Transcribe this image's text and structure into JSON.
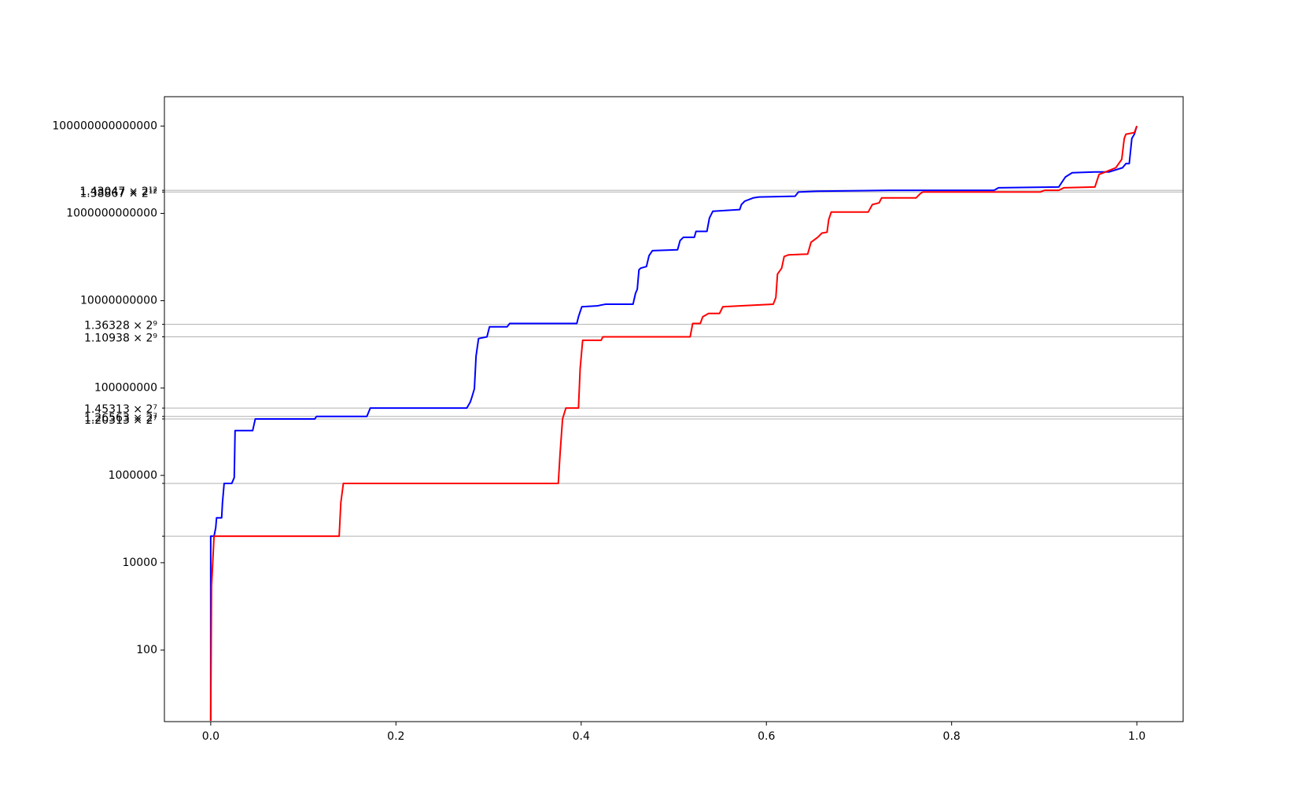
{
  "chart_data": {
    "type": "line",
    "yscale": "log",
    "xlim": [
      -0.05,
      1.05
    ],
    "ylim": [
      2.3,
      470000000000000
    ],
    "xticks": [
      {
        "value": 0,
        "label": "0.0"
      },
      0.2,
      0.4,
      0.6,
      0.8,
      {
        "value": 1,
        "label": "1.0"
      }
    ],
    "yticks": [
      100,
      10000,
      1000000,
      100000000,
      10000000000,
      1000000000000,
      100000000000000
    ],
    "yminorticks": [
      {
        "value": 3370000000000,
        "label": "1.43047 × 2¹²"
      },
      {
        "value": 3080000000000,
        "label": "1.38867 × 2¹²"
      },
      {
        "value": 2880000000,
        "label": "1.36328 × 2⁹"
      },
      {
        "value": 1490000000,
        "label": "1.10938 × 2⁹"
      },
      {
        "value": 34800000,
        "label": "1.45313 × 2⁷"
      },
      {
        "value": 22400000,
        "label": "1.26563 × 2⁷"
      },
      {
        "value": 19600000,
        "label": "1.20313 × 2⁷"
      },
      {
        "value": 655000,
        "label": null
      },
      {
        "value": 40500,
        "label": null
      }
    ],
    "grid": true,
    "series": [
      {
        "color": "#0000ff",
        "x": [
          0,
          0,
          0.0036,
          0.0054,
          0.0063,
          0.0118,
          0.0127,
          0.0145,
          0.0227,
          0.0254,
          0.0263,
          0.0453,
          0.0481,
          0.1124,
          0.1142,
          0.1686,
          0.1723,
          0.2765,
          0.2802,
          0.282,
          0.2847,
          0.2865,
          0.2892,
          0.2983,
          0.301,
          0.32,
          0.3228,
          0.3953,
          0.3971,
          0.4007,
          0.417,
          0.4261,
          0.456,
          0.4587,
          0.4606,
          0.4624,
          0.4642,
          0.4705,
          0.4733,
          0.4769,
          0.5041,
          0.5068,
          0.5104,
          0.5222,
          0.524,
          0.5358,
          0.5385,
          0.5422,
          0.5712,
          0.573,
          0.5766,
          0.5857,
          0.592,
          0.631,
          0.6346,
          0.6555,
          0.7326,
          0.8459,
          0.8504,
          0.9157,
          0.9193,
          0.9229,
          0.9302,
          0.9547,
          0.9701,
          0.9846,
          0.9882,
          0.9918,
          0.9946,
          0.9973,
          1.0
        ],
        "values": [
          2.4,
          40500,
          40500,
          63000,
          107000,
          107000,
          237000,
          655000,
          655000,
          890000,
          10600000,
          10600000,
          19600000,
          19600000,
          22400000,
          22400000,
          34800000,
          34800000,
          47400000,
          61800000,
          96000000,
          538000000,
          1360000000,
          1490000000,
          2520000000,
          2520000000,
          3010000000,
          3010000000,
          4290000000,
          7280000000,
          7600000000,
          8300000000,
          8300000000,
          14800000000,
          18400000000,
          50800000000,
          55500000000,
          60600000000,
          108000000000,
          140000000000,
          147000000000,
          238000000000,
          284000000000,
          284000000000,
          387000000000,
          387000000000,
          785000000000,
          1120000000000,
          1220000000000,
          1590000000000,
          1900000000000,
          2260000000000,
          2370000000000,
          2470000000000,
          3080000000000,
          3220000000000,
          3370000000000,
          3370000000000,
          3850000000000,
          4020000000000,
          5240000000000,
          6820000000000,
          8510000000000,
          8900000000000,
          8900000000000,
          11100000000000,
          13800000000000,
          13800000000000,
          52000000000000,
          64900000000000,
          100000000000000
        ]
      },
      {
        "color": "#ff0000",
        "x": [
          0,
          0.0009,
          0.0036,
          0.1387,
          0.1405,
          0.1432,
          0.3753,
          0.3772,
          0.3799,
          0.3835,
          0.3971,
          0.3989,
          0.4016,
          0.4216,
          0.4234,
          0.5177,
          0.5204,
          0.5286,
          0.5313,
          0.5376,
          0.5494,
          0.553,
          0.5712,
          0.6074,
          0.6102,
          0.612,
          0.6165,
          0.6192,
          0.6238,
          0.6446,
          0.6482,
          0.6555,
          0.66,
          0.6655,
          0.6673,
          0.67,
          0.7099,
          0.7144,
          0.7217,
          0.7244,
          0.7616,
          0.7661,
          0.7688,
          0.8957,
          0.9003,
          0.9157,
          0.9211,
          0.9547,
          0.9592,
          0.9683,
          0.9773,
          0.9837,
          0.9864,
          0.9882,
          0.9973,
          1.0
        ],
        "values": [
          2.4,
          2900,
          40500,
          40500,
          237000,
          655000,
          655000,
          3070000,
          19600000,
          34800000,
          34800000,
          277000000,
          1240000000,
          1240000000,
          1490000000,
          1490000000,
          3010000000,
          3010000000,
          4290000000,
          5110000000,
          5110000000,
          7280000000,
          7600000000,
          8300000000,
          11800000000,
          40700000000,
          55500000000,
          103000000000,
          112000000000,
          117000000000,
          218000000000,
          284000000000,
          354000000000,
          370000000000,
          718000000000,
          1070000000000,
          1070000000000,
          1590000000000,
          1740000000000,
          2260000000000,
          2260000000000,
          2820000000000,
          3080000000000,
          3080000000000,
          3370000000000,
          3370000000000,
          3850000000000,
          4020000000000,
          7790000000000,
          9300000000000,
          11100000000000,
          17300000000000,
          52000000000000,
          64900000000000,
          70800000000000,
          100000000000000
        ]
      }
    ]
  }
}
